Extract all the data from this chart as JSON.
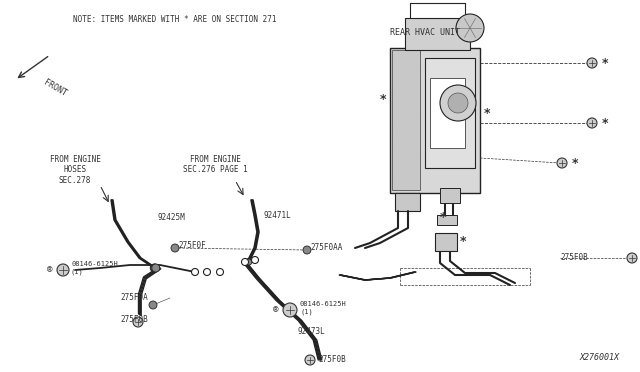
{
  "bg_color": "#ffffff",
  "line_color": "#333333",
  "gray": "#888888",
  "dark": "#222222",
  "title": "X276001X",
  "note_text": "NOTE: ITEMS MARKED WITH * ARE ON SECTION 271",
  "rear_hvac_label": "REAR HVAC UNIT",
  "front_label": "FRONT",
  "figsize": [
    6.4,
    3.72
  ],
  "dpi": 100
}
